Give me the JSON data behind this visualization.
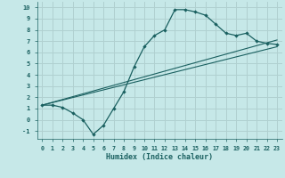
{
  "xlabel": "Humidex (Indice chaleur)",
  "background_color": "#c6e8e8",
  "grid_color": "#b0d0d0",
  "line_color": "#1a6060",
  "xlim": [
    -0.5,
    23.5
  ],
  "ylim": [
    -1.7,
    10.5
  ],
  "xticks": [
    0,
    1,
    2,
    3,
    4,
    5,
    6,
    7,
    8,
    9,
    10,
    11,
    12,
    13,
    14,
    15,
    16,
    17,
    18,
    19,
    20,
    21,
    22,
    23
  ],
  "yticks": [
    -1,
    0,
    1,
    2,
    3,
    4,
    5,
    6,
    7,
    8,
    9,
    10
  ],
  "series": [
    [
      0,
      1.3
    ],
    [
      1,
      1.3
    ],
    [
      2,
      1.1
    ],
    [
      3,
      0.6
    ],
    [
      4,
      0.0
    ],
    [
      5,
      -1.3
    ],
    [
      6,
      -0.5
    ],
    [
      7,
      1.0
    ],
    [
      8,
      2.5
    ],
    [
      9,
      4.7
    ],
    [
      10,
      6.5
    ],
    [
      11,
      7.5
    ],
    [
      12,
      8.0
    ],
    [
      13,
      9.8
    ],
    [
      14,
      9.8
    ],
    [
      15,
      9.6
    ],
    [
      16,
      9.3
    ],
    [
      17,
      8.5
    ],
    [
      18,
      7.7
    ],
    [
      19,
      7.5
    ],
    [
      20,
      7.7
    ],
    [
      21,
      7.0
    ],
    [
      22,
      6.8
    ],
    [
      23,
      6.7
    ]
  ],
  "line_straight1": [
    [
      0,
      1.3
    ],
    [
      23,
      7.1
    ]
  ],
  "line_straight2": [
    [
      0,
      1.3
    ],
    [
      23,
      6.5
    ]
  ]
}
